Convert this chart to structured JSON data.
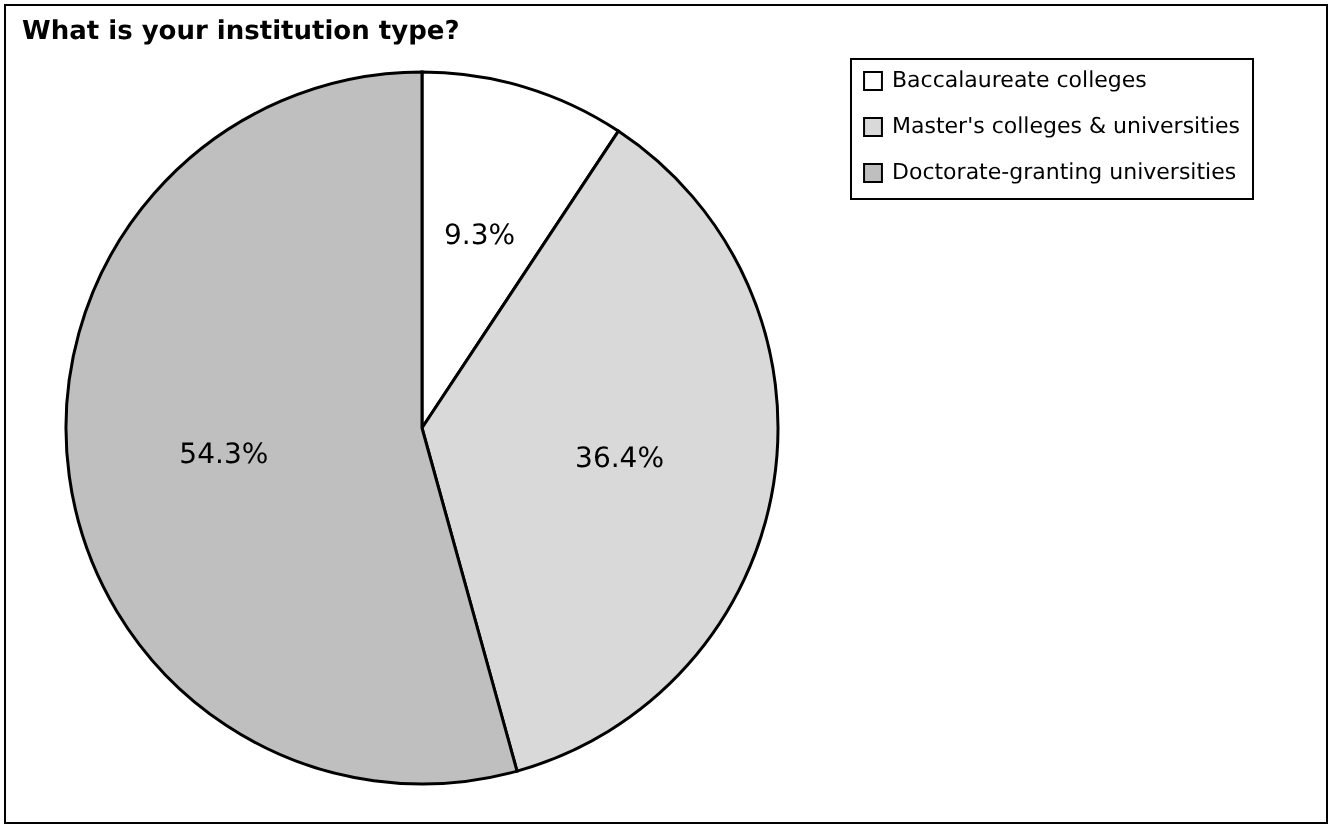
{
  "chart_data": {
    "type": "pie",
    "title": "What is your institution type?",
    "categories": [
      "Baccalaureate colleges",
      "Master's colleges & universities",
      "Doctorate-granting universities"
    ],
    "values": [
      9.3,
      36.4,
      54.3
    ],
    "colors": [
      "#ffffff",
      "#d9d9d9",
      "#bfbfbf"
    ],
    "value_labels": [
      "9.3%",
      "36.4%",
      "54.3%"
    ],
    "legend": "top right"
  }
}
